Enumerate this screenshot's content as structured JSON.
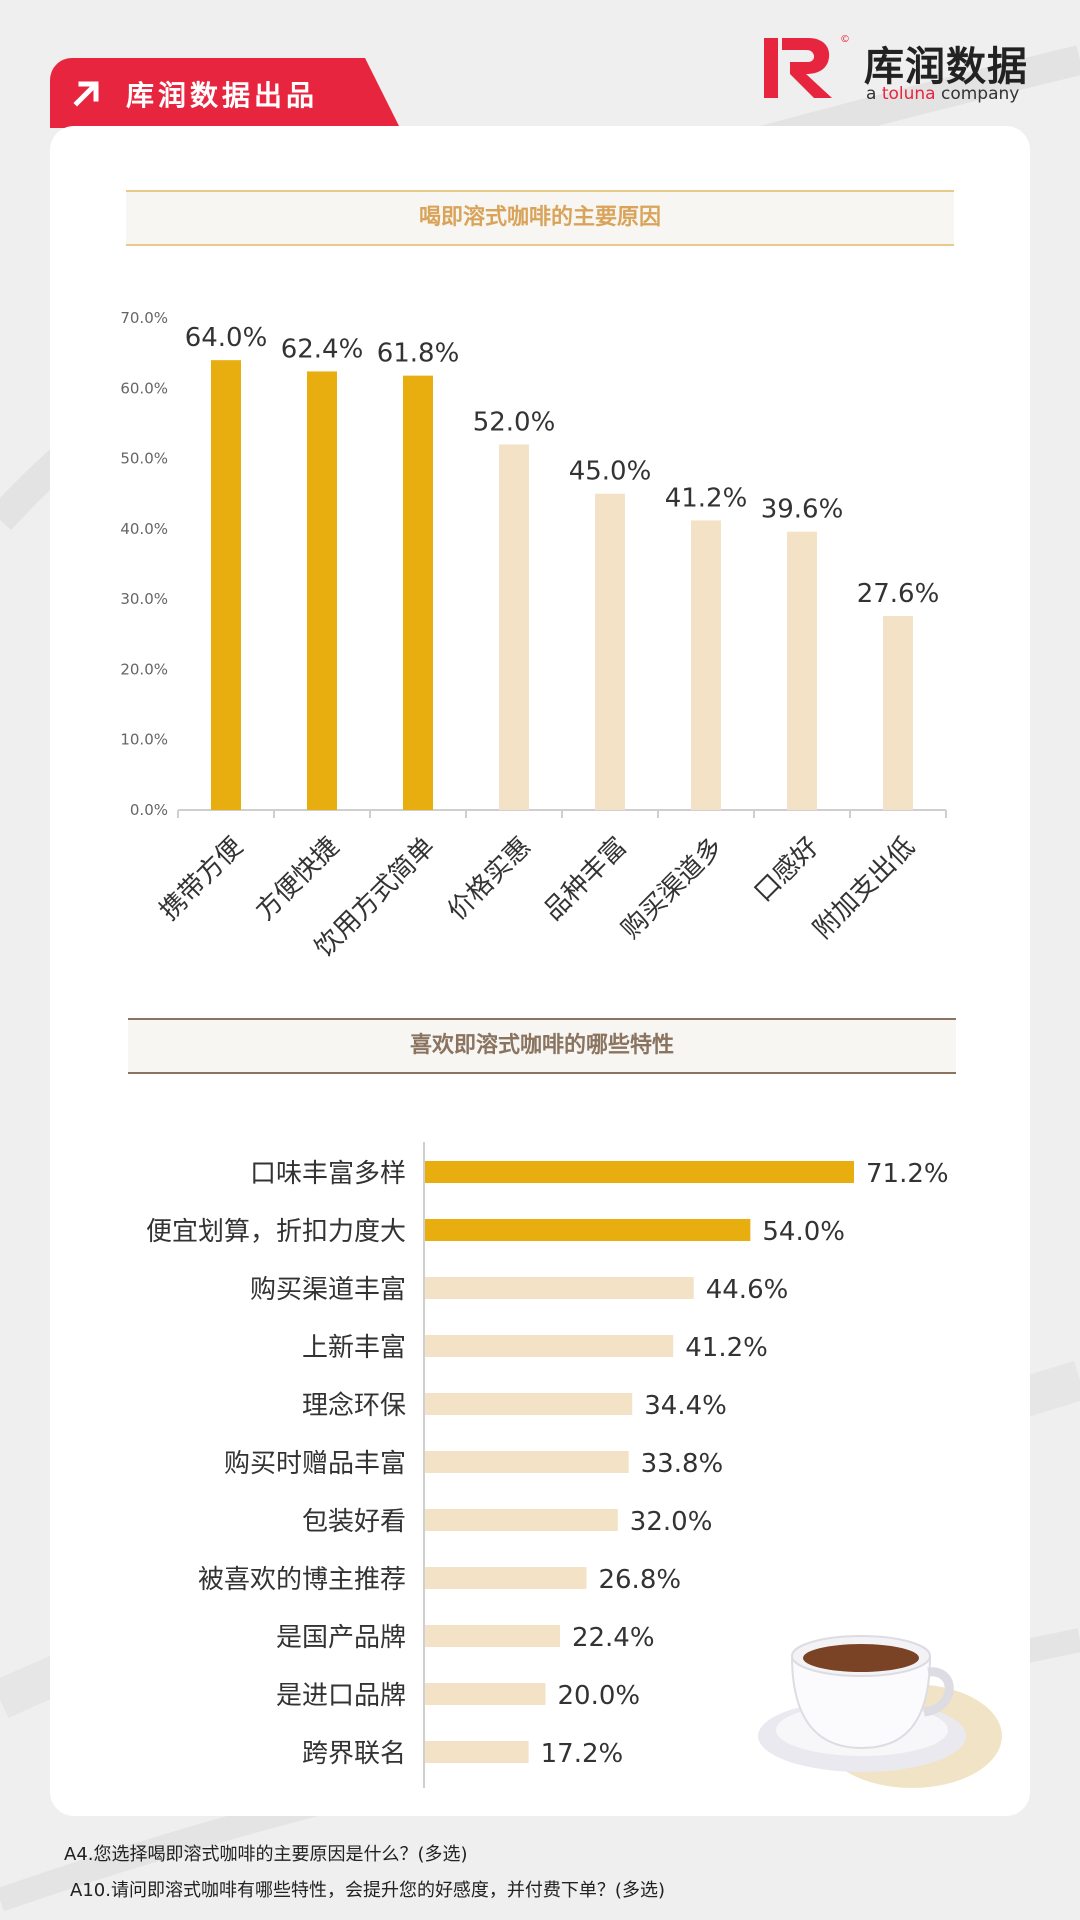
{
  "brand": {
    "tag_label": "库润数据出品",
    "logo_name": "库润数据",
    "logo_sub_prefix": "a ",
    "logo_sub_brand": "toluna",
    "logo_sub_suffix": " company",
    "logo_copyright": "©",
    "accent_color": "#e8253f"
  },
  "chart_data": [
    {
      "type": "bar",
      "orientation": "vertical",
      "title": "喝即溶式咖啡的主要原因",
      "categories": [
        "携带方便",
        "方便快捷",
        "饮用方式简单",
        "价格实惠",
        "品种丰富",
        "购买渠道多",
        "口感好",
        "附加支出低"
      ],
      "values": [
        64.0,
        62.4,
        61.8,
        52.0,
        45.0,
        41.2,
        39.6,
        27.6
      ],
      "value_labels": [
        "64.0%",
        "62.4%",
        "61.8%",
        "52.0%",
        "45.0%",
        "41.2%",
        "39.6%",
        "27.6%"
      ],
      "highlight_count": 3,
      "ylim": [
        0,
        70
      ],
      "yticks": [
        "0.0%",
        "10.0%",
        "20.0%",
        "30.0%",
        "40.0%",
        "50.0%",
        "60.0%",
        "70.0%"
      ],
      "grid": false,
      "colors": {
        "highlight": "#e8ae10",
        "normal": "#f3e2c5"
      }
    },
    {
      "type": "bar",
      "orientation": "horizontal",
      "title": "喜欢即溶式咖啡的哪些特性",
      "categories": [
        "口味丰富多样",
        "便宜划算，折扣力度大",
        "购买渠道丰富",
        "上新丰富",
        "理念环保",
        "购买时赠品丰富",
        "包装好看",
        "被喜欢的博主推荐",
        "是国产品牌",
        "是进口品牌",
        "跨界联名"
      ],
      "values": [
        71.2,
        54.0,
        44.6,
        41.2,
        34.4,
        33.8,
        32.0,
        26.8,
        22.4,
        20.0,
        17.2
      ],
      "value_labels": [
        "71.2%",
        "54.0%",
        "44.6%",
        "41.2%",
        "34.4%",
        "33.8%",
        "32.0%",
        "26.8%",
        "22.4%",
        "20.0%",
        "17.2%"
      ],
      "highlight_count": 2,
      "grid": false,
      "colors": {
        "highlight": "#e8ae10",
        "normal": "#f3e2c5"
      }
    }
  ],
  "footnotes": [
    "A4.您选择喝即溶式咖啡的主要原因是什么？(多选)",
    "A10.请问即溶式咖啡有哪些特性，会提升您的好感度，并付费下单？(多选)"
  ],
  "icons": {
    "tag_arrow": "arrow-up-right-icon",
    "illustration": "coffee-cup-illustration"
  }
}
